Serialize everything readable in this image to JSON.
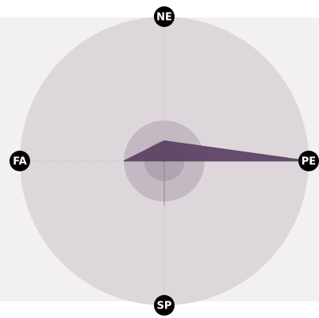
{
  "chart_data": {
    "type": "radar",
    "axes": [
      "NE",
      "PE",
      "SP",
      "FA"
    ],
    "series": [
      {
        "values": [
          0.14,
          1.0,
          0.0,
          0.28
        ],
        "color": "#5e4466"
      }
    ],
    "rings": [
      1.0,
      0.28,
      0.14
    ],
    "grid": true,
    "background_color": "#f2f0f0",
    "outer_ring_color": "#ddd6db",
    "inner_ring_color": "#c4b9c2",
    "core_ring_color": "#b0a4ae",
    "label_badge_color": "#000000"
  }
}
